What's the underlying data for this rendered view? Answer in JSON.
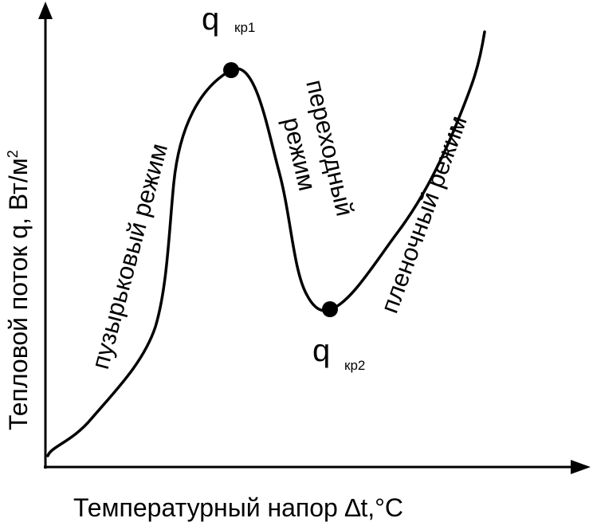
{
  "colors": {
    "ink": "#000000",
    "background": "#ffffff"
  },
  "axes": {
    "x_label": "Температурный напор ∆t,°C",
    "y_label_main": "Тепловой поток q, Вт/м",
    "y_label_sup": "2"
  },
  "points": {
    "q1": {
      "symbol": "q",
      "sub": "кр1"
    },
    "q2": {
      "symbol": "q",
      "sub": "кр2"
    }
  },
  "regimes": {
    "bubble": "пузырьковый режим",
    "transition_line1": "переходный",
    "transition_line2": "режим",
    "film": "пленочный режим"
  }
}
